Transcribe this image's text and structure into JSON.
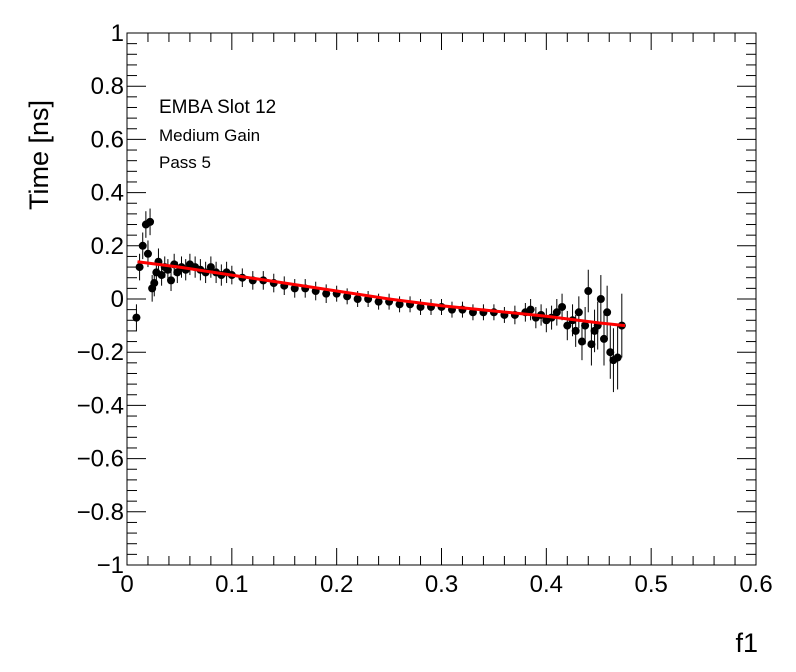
{
  "chart_data": {
    "type": "scatter",
    "title": "",
    "xlabel": "f1",
    "ylabel": "Time [ns]",
    "xlim": [
      0,
      0.6
    ],
    "ylim": [
      -1,
      1
    ],
    "x_ticks": [
      0,
      0.1,
      0.2,
      0.3,
      0.4,
      0.5,
      0.6
    ],
    "x_tick_labels": [
      "0",
      "0.1",
      "0.2",
      "0.3",
      "0.4",
      "0.5",
      "0.6"
    ],
    "y_ticks": [
      -1,
      -0.8,
      -0.6,
      -0.4,
      -0.2,
      0,
      0.2,
      0.4,
      0.6,
      0.8,
      1
    ],
    "y_tick_labels": [
      "−1",
      "−0.8",
      "−0.6",
      "−0.4",
      "−0.2",
      "0",
      "0.2",
      "0.4",
      "0.6",
      "0.8",
      "1"
    ],
    "grid": false,
    "legend": "none",
    "annotations": [
      "EMBA Slot 12",
      "Medium Gain",
      "Pass 5"
    ],
    "marker_color": "#000000",
    "fit_color": "#ff0000",
    "series": [
      {
        "x": [
          0.009,
          0.012,
          0.015,
          0.018,
          0.02,
          0.022,
          0.024,
          0.026,
          0.028,
          0.03,
          0.033,
          0.036,
          0.039,
          0.042,
          0.045,
          0.048,
          0.052,
          0.056,
          0.06,
          0.065,
          0.07,
          0.075,
          0.08,
          0.085,
          0.09,
          0.095,
          0.1,
          0.11,
          0.12,
          0.13,
          0.14,
          0.15,
          0.16,
          0.17,
          0.18,
          0.19,
          0.2,
          0.21,
          0.22,
          0.23,
          0.24,
          0.25,
          0.26,
          0.27,
          0.28,
          0.29,
          0.3,
          0.31,
          0.32,
          0.33,
          0.34,
          0.35,
          0.36,
          0.37,
          0.38,
          0.385,
          0.39,
          0.395,
          0.4,
          0.405,
          0.41,
          0.415,
          0.42,
          0.425,
          0.428,
          0.431,
          0.434,
          0.437,
          0.44,
          0.443,
          0.446,
          0.449,
          0.452,
          0.455,
          0.458,
          0.461,
          0.464,
          0.468,
          0.472
        ],
        "y": [
          -0.07,
          0.12,
          0.2,
          0.28,
          0.17,
          0.29,
          0.04,
          0.06,
          0.1,
          0.14,
          0.09,
          0.12,
          0.11,
          0.07,
          0.13,
          0.1,
          0.12,
          0.11,
          0.13,
          0.12,
          0.11,
          0.1,
          0.12,
          0.1,
          0.09,
          0.1,
          0.09,
          0.08,
          0.07,
          0.07,
          0.06,
          0.05,
          0.04,
          0.04,
          0.03,
          0.02,
          0.02,
          0.01,
          0.0,
          0.0,
          -0.01,
          -0.01,
          -0.02,
          -0.02,
          -0.03,
          -0.03,
          -0.03,
          -0.04,
          -0.04,
          -0.05,
          -0.05,
          -0.05,
          -0.06,
          -0.06,
          -0.05,
          -0.04,
          -0.07,
          -0.06,
          -0.08,
          -0.07,
          -0.05,
          -0.03,
          -0.1,
          -0.08,
          -0.12,
          -0.05,
          -0.16,
          -0.1,
          0.03,
          -0.17,
          -0.12,
          -0.1,
          0.0,
          -0.15,
          -0.05,
          -0.2,
          -0.23,
          -0.22,
          -0.1
        ],
        "yerr": [
          0.05,
          0.05,
          0.05,
          0.05,
          0.05,
          0.05,
          0.05,
          0.05,
          0.05,
          0.05,
          0.04,
          0.04,
          0.04,
          0.04,
          0.04,
          0.04,
          0.04,
          0.04,
          0.04,
          0.04,
          0.04,
          0.04,
          0.04,
          0.04,
          0.04,
          0.04,
          0.035,
          0.035,
          0.035,
          0.035,
          0.035,
          0.035,
          0.035,
          0.035,
          0.035,
          0.035,
          0.03,
          0.03,
          0.03,
          0.03,
          0.03,
          0.03,
          0.03,
          0.03,
          0.03,
          0.03,
          0.03,
          0.03,
          0.03,
          0.03,
          0.03,
          0.03,
          0.03,
          0.035,
          0.035,
          0.04,
          0.04,
          0.04,
          0.045,
          0.045,
          0.05,
          0.05,
          0.055,
          0.06,
          0.06,
          0.06,
          0.07,
          0.07,
          0.08,
          0.08,
          0.08,
          0.09,
          0.09,
          0.1,
          0.1,
          0.1,
          0.12,
          0.12,
          0.12
        ]
      }
    ],
    "fit": {
      "x": [
        0.01,
        0.05,
        0.1,
        0.15,
        0.2,
        0.25,
        0.3,
        0.35,
        0.4,
        0.45,
        0.475
      ],
      "y": [
        0.14,
        0.12,
        0.09,
        0.06,
        0.03,
        0.0,
        -0.025,
        -0.045,
        -0.065,
        -0.09,
        -0.1
      ]
    }
  }
}
